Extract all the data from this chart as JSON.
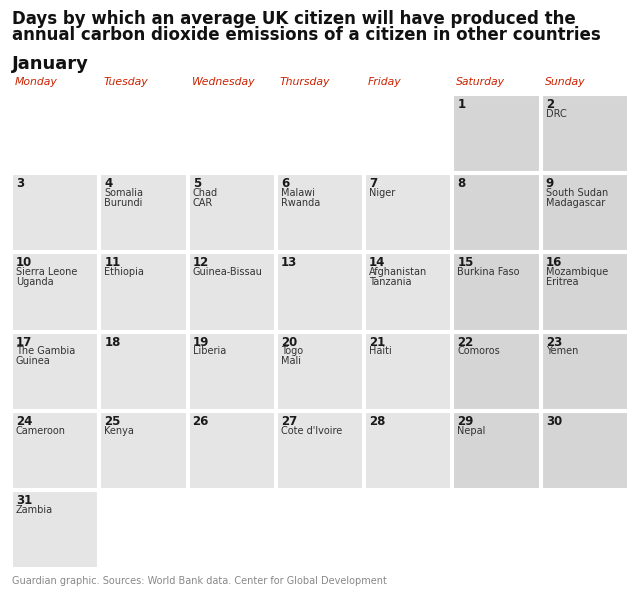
{
  "title_line1": "Days by which an average UK citizen will have produced the",
  "title_line2": "annual carbon dioxide emissions of a citizen in other countries",
  "month": "January",
  "days_of_week": [
    "Monday",
    "Tuesday",
    "Wednesday",
    "Thursday",
    "Friday",
    "Saturday",
    "Sunday"
  ],
  "weekend_cols": [
    5,
    6
  ],
  "background_color": "#ffffff",
  "cell_color_weekday": "#e5e5e5",
  "cell_color_weekend": "#d5d5d5",
  "day_color": "#1a1a1a",
  "country_color": "#333333",
  "header_color": "#cc2200",
  "title_color": "#111111",
  "month_color": "#111111",
  "footer": "Guardian graphic. Sources: World Bank data. Center for Global Development",
  "footer_color": "#888888",
  "calendar": [
    [
      null,
      null,
      null,
      null,
      null,
      {
        "day": 1,
        "countries": []
      },
      {
        "day": 2,
        "countries": [
          "DRC"
        ]
      }
    ],
    [
      {
        "day": 3,
        "countries": []
      },
      {
        "day": 4,
        "countries": [
          "Somalia",
          "Burundi"
        ]
      },
      {
        "day": 5,
        "countries": [
          "Chad",
          "CAR"
        ]
      },
      {
        "day": 6,
        "countries": [
          "Malawi",
          "Rwanda"
        ]
      },
      {
        "day": 7,
        "countries": [
          "Niger"
        ]
      },
      {
        "day": 8,
        "countries": []
      },
      {
        "day": 9,
        "countries": [
          "South Sudan",
          "Madagascar"
        ]
      }
    ],
    [
      {
        "day": 10,
        "countries": [
          "Sierra Leone",
          "Uganda"
        ]
      },
      {
        "day": 11,
        "countries": [
          "Ethiopia"
        ]
      },
      {
        "day": 12,
        "countries": [
          "Guinea-Bissau"
        ]
      },
      {
        "day": 13,
        "countries": []
      },
      {
        "day": 14,
        "countries": [
          "Afghanistan",
          "Tanzania"
        ]
      },
      {
        "day": 15,
        "countries": [
          "Burkina Faso"
        ]
      },
      {
        "day": 16,
        "countries": [
          "Mozambique",
          "Eritrea"
        ]
      }
    ],
    [
      {
        "day": 17,
        "countries": [
          "The Gambia",
          "Guinea"
        ]
      },
      {
        "day": 18,
        "countries": []
      },
      {
        "day": 19,
        "countries": [
          "Liberia"
        ]
      },
      {
        "day": 20,
        "countries": [
          "Togo",
          "Mali"
        ]
      },
      {
        "day": 21,
        "countries": [
          "Haiti"
        ]
      },
      {
        "day": 22,
        "countries": [
          "Comoros"
        ]
      },
      {
        "day": 23,
        "countries": [
          "Yemen"
        ]
      }
    ],
    [
      {
        "day": 24,
        "countries": [
          "Cameroon"
        ]
      },
      {
        "day": 25,
        "countries": [
          "Kenya"
        ]
      },
      {
        "day": 26,
        "countries": []
      },
      {
        "day": 27,
        "countries": [
          "Cote d'Ivoire"
        ]
      },
      {
        "day": 28,
        "countries": []
      },
      {
        "day": 29,
        "countries": [
          "Nepal"
        ]
      },
      {
        "day": 30,
        "countries": []
      }
    ],
    [
      {
        "day": 31,
        "countries": [
          "Zambia"
        ]
      },
      null,
      null,
      null,
      null,
      null,
      null
    ]
  ],
  "fig_width": 6.4,
  "fig_height": 5.96,
  "dpi": 100
}
